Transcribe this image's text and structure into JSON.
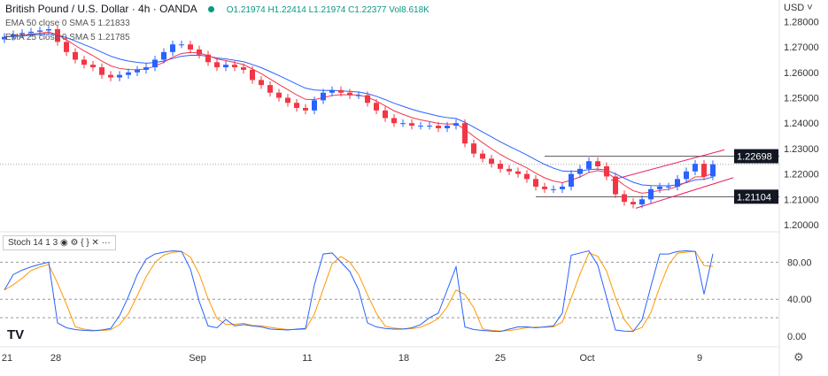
{
  "header": {
    "symbol": "British Pound / U.S. Dollar · 4h · OANDA",
    "ohlc": "O1.21974 H1.22414 L1.21974 C1.22377 Vol8.618K",
    "currency": "USD"
  },
  "indicators": {
    "ema50": "EMA 50 close 0 SMA 5  1.21833",
    "ema25": "EMA 25 close 0 SMA 5  1.21785",
    "stoch": "Stoch 14 1 3"
  },
  "chart_data": {
    "type": "candlestick",
    "y_ticks": [
      "1.28000",
      "1.27000",
      "1.26000",
      "1.25000",
      "1.24000",
      "1.23000",
      "1.22000",
      "1.21000",
      "1.20000"
    ],
    "ylim": [
      1.2,
      1.28
    ],
    "x_ticks": [
      "21",
      "28",
      "Sep",
      "11",
      "18",
      "25",
      "Oct",
      "9"
    ],
    "closes": [
      1.274,
      1.275,
      1.2755,
      1.276,
      1.2765,
      1.277,
      1.272,
      1.268,
      1.265,
      1.263,
      1.262,
      1.259,
      1.258,
      1.259,
      1.26,
      1.261,
      1.262,
      1.265,
      1.268,
      1.271,
      1.271,
      1.269,
      1.267,
      1.264,
      1.262,
      1.263,
      1.262,
      1.261,
      1.257,
      1.255,
      1.252,
      1.25,
      1.248,
      1.246,
      1.245,
      1.249,
      1.252,
      1.253,
      1.252,
      1.251,
      1.251,
      1.248,
      1.245,
      1.242,
      1.24,
      1.24,
      1.239,
      1.239,
      1.239,
      1.238,
      1.239,
      1.24,
      1.232,
      1.228,
      1.226,
      1.224,
      1.222,
      1.221,
      1.22,
      1.218,
      1.215,
      1.214,
      1.214,
      1.215,
      1.22,
      1.222,
      1.225,
      1.223,
      1.219,
      1.212,
      1.209,
      1.208,
      1.21,
      1.214,
      1.215,
      1.215,
      1.218,
      1.221,
      1.224,
      1.219,
      1.2238
    ],
    "levels": {
      "resistance": "1.22698",
      "support": "1.21104"
    },
    "stoch_ticks": [
      "80.00",
      "40.00",
      "0.00"
    ],
    "stoch_ylim": [
      0,
      100
    ],
    "colors": {
      "up": "#2962ff",
      "down": "#f23645",
      "ema50": "#2962ff",
      "ema25": "#f23645",
      "stoch_k": "#2962ff",
      "stoch_d": "#ff9800",
      "channel": "#e91e63"
    }
  }
}
